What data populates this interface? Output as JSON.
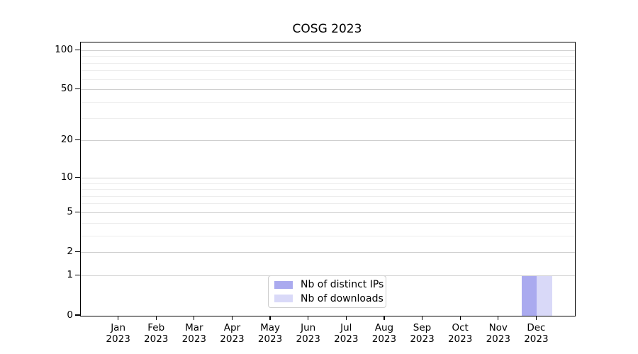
{
  "title": "COSG 2023",
  "chart_data": {
    "type": "bar",
    "title": "COSG 2023",
    "categories": [
      "Jan",
      "Feb",
      "Mar",
      "Apr",
      "May",
      "Jun",
      "Jul",
      "Aug",
      "Sep",
      "Oct",
      "Nov",
      "Dec"
    ],
    "category_year": "2023",
    "series": [
      {
        "name": "Nb of distinct IPs",
        "color": "#aaaaef",
        "values": [
          0,
          0,
          0,
          0,
          0,
          0,
          0,
          0,
          0,
          0,
          0,
          1
        ]
      },
      {
        "name": "Nb of downloads",
        "color": "#d9d9f8",
        "values": [
          0,
          0,
          0,
          0,
          0,
          0,
          0,
          0,
          0,
          0,
          0,
          1
        ]
      }
    ],
    "yscale": "log1p",
    "ymax": 115,
    "yticks_major": [
      0,
      1,
      2,
      5,
      10,
      20,
      50,
      100
    ],
    "yticks_minor": [
      3,
      4,
      6,
      7,
      8,
      9,
      30,
      40,
      60,
      70,
      80,
      90
    ],
    "xlabel": "",
    "ylabel": "",
    "grid": "horizontal",
    "legend_position": "lower center"
  },
  "colors": {
    "background": "#ffffff",
    "spine": "#000000",
    "grid_major": "#cfcfcf",
    "grid_minor": "#ededed",
    "text": "#000000",
    "legend_border": "#cccccc",
    "bar_distinct_ips": "#aaaaef",
    "bar_downloads": "#d9d9f8"
  }
}
